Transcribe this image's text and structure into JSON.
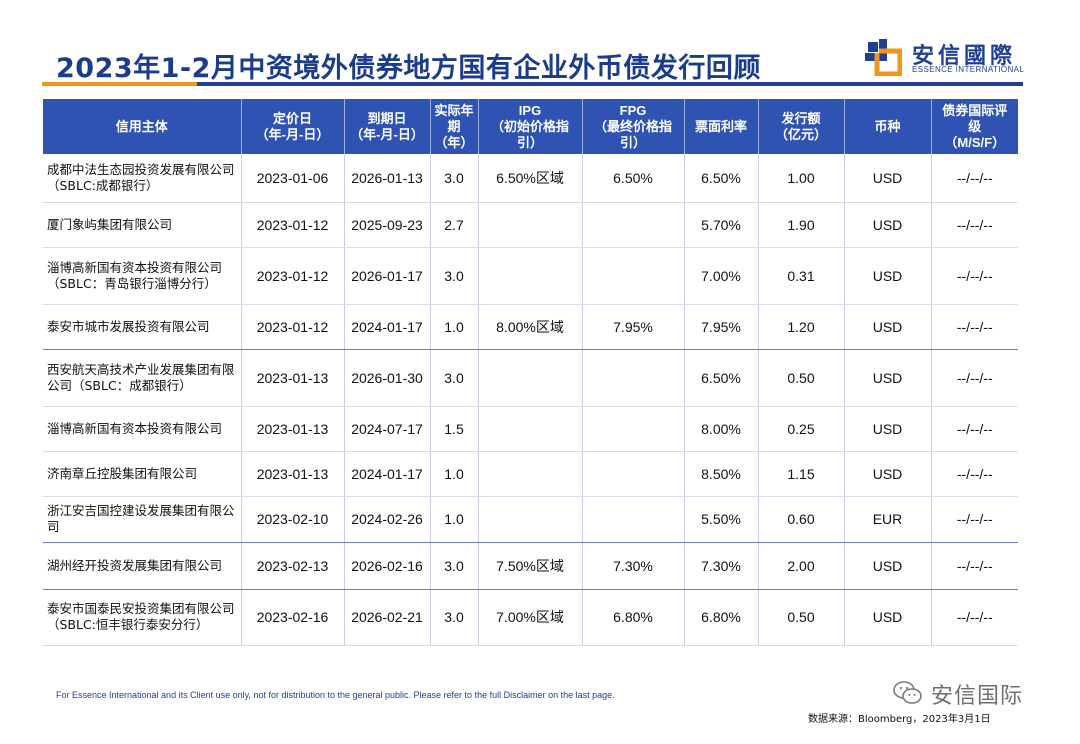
{
  "title": "2023年1-2月中资境外债券地方国有企业外币债发行回顾",
  "logo": {
    "cn": "安信國際",
    "en": "ESSENCE INTERNATIONAL"
  },
  "table": {
    "headers": [
      "信用主体",
      "定价日\n（年-月-日）",
      "到期日\n（年-月-日）",
      "实际年\n期\n（年）",
      "IPG\n（初始价格指\n引）",
      "FPG\n（最终价格指\n引）",
      "票面利率",
      "发行额\n（亿元）",
      "币种",
      "债券国际评\n级\n（M/S/F）"
    ],
    "rows": [
      {
        "issuer": "成都中法生态园投资发展有限公司（SBLC:成都银行）",
        "pricing": "2023-01-06",
        "maturity": "2026-01-13",
        "tenor": "3.0",
        "ipg": "6.50%区域",
        "fpg": "6.50%",
        "coupon": "6.50%",
        "amount": "1.00",
        "currency": "USD",
        "rating": "--/--/--"
      },
      {
        "issuer": "厦门象屿集团有限公司",
        "pricing": "2023-01-12",
        "maturity": "2025-09-23",
        "tenor": "2.7",
        "ipg": "",
        "fpg": "",
        "coupon": "5.70%",
        "amount": "1.90",
        "currency": "USD",
        "rating": "--/--/--"
      },
      {
        "issuer": "淄博高新国有资本投资有限公司（SBLC：青岛银行淄博分行）",
        "pricing": "2023-01-12",
        "maturity": "2026-01-17",
        "tenor": "3.0",
        "ipg": "",
        "fpg": "",
        "coupon": "7.00%",
        "amount": "0.31",
        "currency": "USD",
        "rating": "--/--/--"
      },
      {
        "issuer": "泰安市城市发展投资有限公司",
        "pricing": "2023-01-12",
        "maturity": "2024-01-17",
        "tenor": "1.0",
        "ipg": "8.00%区域",
        "fpg": "7.95%",
        "coupon": "7.95%",
        "amount": "1.20",
        "currency": "USD",
        "rating": "--/--/--"
      },
      {
        "issuer": "西安航天高技术产业发展集团有限公司（SBLC：成都银行）",
        "pricing": "2023-01-13",
        "maturity": "2026-01-30",
        "tenor": "3.0",
        "ipg": "",
        "fpg": "",
        "coupon": "6.50%",
        "amount": "0.50",
        "currency": "USD",
        "rating": "--/--/--"
      },
      {
        "issuer": "淄博高新国有资本投资有限公司",
        "pricing": "2023-01-13",
        "maturity": "2024-07-17",
        "tenor": "1.5",
        "ipg": "",
        "fpg": "",
        "coupon": "8.00%",
        "amount": "0.25",
        "currency": "USD",
        "rating": "--/--/--"
      },
      {
        "issuer": "济南章丘控股集团有限公司",
        "pricing": "2023-01-13",
        "maturity": "2024-01-17",
        "tenor": "1.0",
        "ipg": "",
        "fpg": "",
        "coupon": "8.50%",
        "amount": "1.15",
        "currency": "USD",
        "rating": "--/--/--"
      },
      {
        "issuer": "浙江安吉国控建设发展集团有限公司",
        "pricing": "2023-02-10",
        "maturity": "2024-02-26",
        "tenor": "1.0",
        "ipg": "",
        "fpg": "",
        "coupon": "5.50%",
        "amount": "0.60",
        "currency": "EUR",
        "rating": "--/--/--"
      },
      {
        "issuer": "湖州经开投资发展集团有限公司",
        "pricing": "2023-02-13",
        "maturity": "2026-02-16",
        "tenor": "3.0",
        "ipg": "7.50%区域",
        "fpg": "7.30%",
        "coupon": "7.30%",
        "amount": "2.00",
        "currency": "USD",
        "rating": "--/--/--"
      },
      {
        "issuer": "泰安市国泰民安投资集团有限公司（SBLC:恒丰银行泰安分行）",
        "pricing": "2023-02-16",
        "maturity": "2026-02-21",
        "tenor": "3.0",
        "ipg": "7.00%区域",
        "fpg": "6.80%",
        "coupon": "6.80%",
        "amount": "0.50",
        "currency": "USD",
        "rating": "--/--/--"
      }
    ]
  },
  "footer": {
    "disclaimer": "For Essence International and its Client use only, not for distribution to the general public. Please refer to the full Disclaimer on the last page.",
    "source": "数据来源：Bloomberg，2023年3月1日"
  },
  "watermark": {
    "text": "安信国际",
    "icon": "wechat-icon"
  },
  "colors": {
    "title": "#1b3b8b",
    "header_bg": "#2f53b3",
    "accent_orange": "#f0961c",
    "eur_highlight": "#f0a020"
  }
}
